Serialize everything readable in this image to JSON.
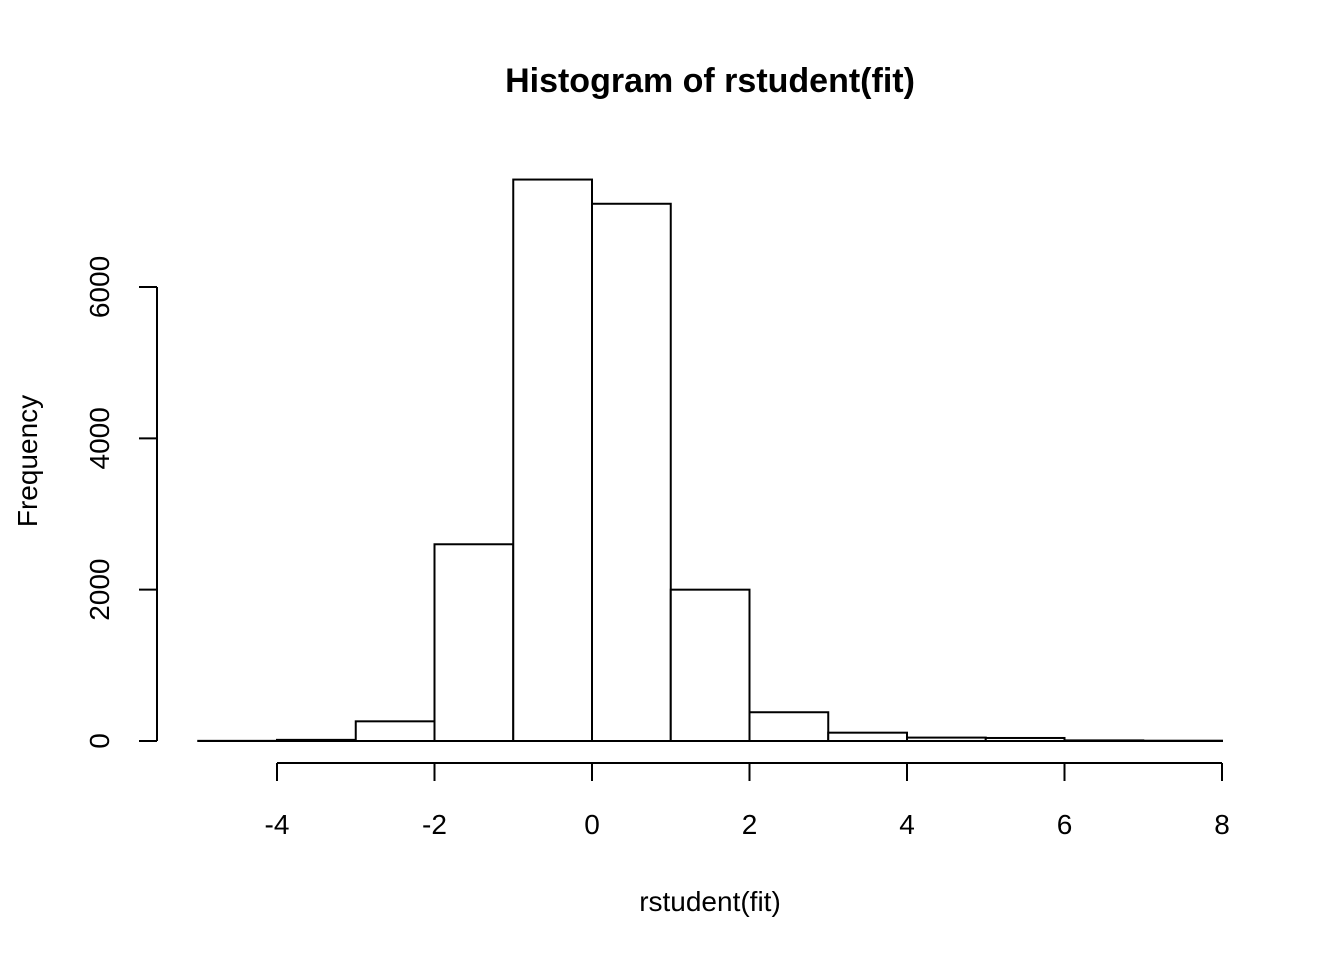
{
  "chart_data": {
    "type": "bar",
    "title": "Histogram of rstudent(fit)",
    "xlabel": "rstudent(fit)",
    "ylabel": "Frequency",
    "bins": [
      {
        "x0": -5,
        "x1": -4,
        "count": 2
      },
      {
        "x0": -4,
        "x1": -3,
        "count": 15
      },
      {
        "x0": -3,
        "x1": -2,
        "count": 260
      },
      {
        "x0": -2,
        "x1": -1,
        "count": 2600
      },
      {
        "x0": -1,
        "x1": 0,
        "count": 7420
      },
      {
        "x0": 0,
        "x1": 1,
        "count": 7100
      },
      {
        "x0": 1,
        "x1": 2,
        "count": 2000
      },
      {
        "x0": 2,
        "x1": 3,
        "count": 380
      },
      {
        "x0": 3,
        "x1": 4,
        "count": 110
      },
      {
        "x0": 4,
        "x1": 5,
        "count": 45
      },
      {
        "x0": 5,
        "x1": 6,
        "count": 40
      },
      {
        "x0": 6,
        "x1": 7,
        "count": 8
      },
      {
        "x0": 7,
        "x1": 8,
        "count": 4
      }
    ],
    "xticks": [
      -4,
      -2,
      0,
      2,
      4,
      6,
      8
    ],
    "xtick_labels": [
      "-4",
      "-2",
      "0",
      "2",
      "4",
      "6",
      "8"
    ],
    "yticks": [
      0,
      2000,
      4000,
      6000
    ],
    "ytick_labels": [
      "0",
      "2000",
      "4000",
      "6000"
    ],
    "xlim": [
      -5,
      8
    ],
    "ylim": [
      0,
      7420
    ],
    "grid": false,
    "legend": "none"
  }
}
